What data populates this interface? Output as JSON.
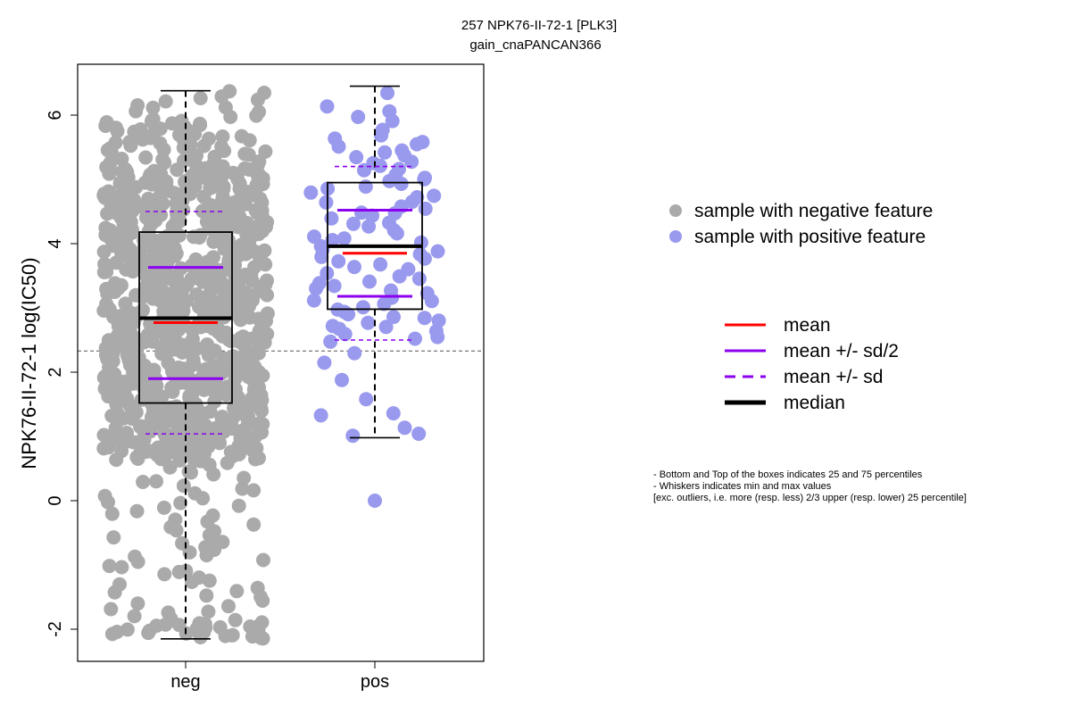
{
  "chart_data": {
    "type": "box-beeswarm",
    "title_line1": "257 NPK76-II-72-1 [PLK3]",
    "title_line2": "gain_cnaPANCAN366",
    "ylabel": "NPK76-II-72-1 log(IC50)",
    "categories": [
      "neg",
      "pos"
    ],
    "ylim": [
      -2.5,
      6.8
    ],
    "yticks": [
      -2,
      0,
      2,
      4,
      6
    ],
    "reference_line": 2.33,
    "groups": [
      {
        "name": "neg",
        "color": "#aaaaaa",
        "n_points": 900,
        "min": -2.15,
        "q1": 1.52,
        "median": 2.84,
        "q3": 4.18,
        "max": 6.38,
        "mean": 2.77,
        "mean_minus_half_sd": 1.9,
        "mean_plus_half_sd": 3.63,
        "mean_minus_sd": 1.04,
        "mean_plus_sd": 4.5
      },
      {
        "name": "pos",
        "color": "#9999ee",
        "n_points": 95,
        "min": 0.98,
        "q1": 2.98,
        "median": 3.96,
        "q3": 4.95,
        "max": 6.45,
        "mean": 3.85,
        "mean_minus_half_sd": 3.18,
        "mean_plus_half_sd": 4.52,
        "mean_minus_sd": 2.5,
        "mean_plus_sd": 5.2,
        "outliers": [
          0.0
        ]
      }
    ],
    "legend_points": [
      {
        "label": "sample with negative feature",
        "color": "#aaaaaa"
      },
      {
        "label": "sample with positive feature",
        "color": "#9999ee"
      }
    ],
    "legend_lines": [
      {
        "label": "mean",
        "color": "#ff0000",
        "style": "solid"
      },
      {
        "label": "mean +/- sd/2",
        "color": "#8b00ee",
        "style": "solid"
      },
      {
        "label": "mean +/- sd",
        "color": "#8b00ee",
        "style": "dashed"
      },
      {
        "label": "median",
        "color": "#000000",
        "style": "thick"
      }
    ],
    "notes": [
      "- Bottom and Top of the boxes indicates 25 and 75 percentiles",
      "- Whiskers indicates min and max values",
      "[exc. outliers, i.e. more (resp. less) 2/3 upper (resp. lower) 25 percentile]"
    ]
  }
}
